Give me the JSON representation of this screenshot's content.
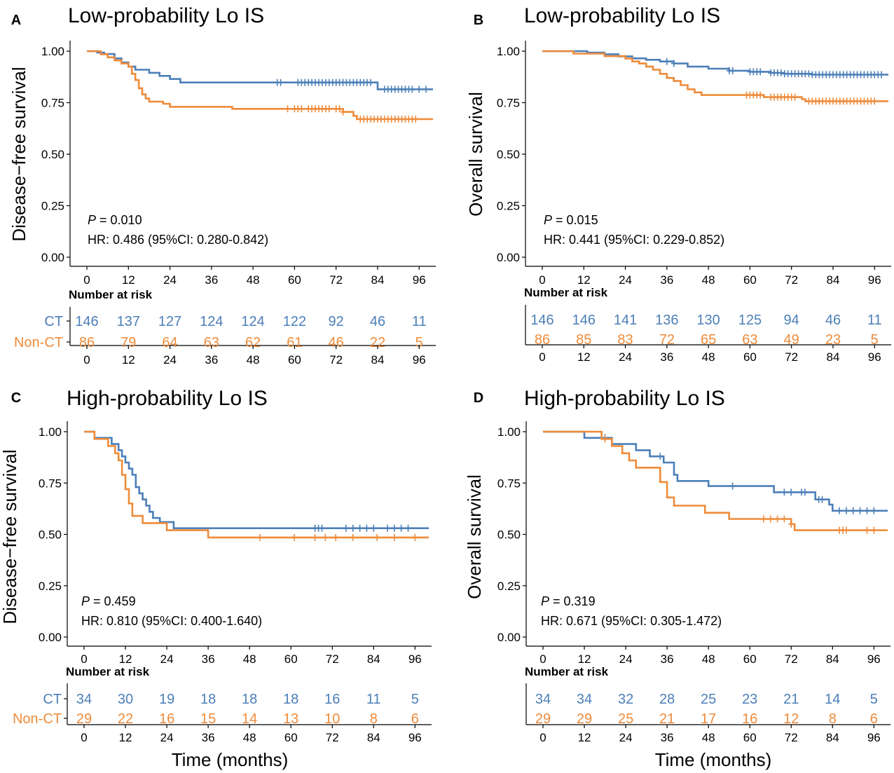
{
  "colors": {
    "ct": "#4C7FB8",
    "nonct": "#EE8B3A",
    "axis": "#000000"
  },
  "x_axis_label": "Time (months)",
  "risk_table_label": "Number at risk",
  "chart_data": [
    {
      "panel": "A",
      "title": "Low-probability Lo IS",
      "type": "line",
      "ylabel": "Disease−free survival",
      "xticks": [
        0,
        12,
        24,
        36,
        48,
        60,
        72,
        84,
        96
      ],
      "yticks": [
        "0.00",
        "0.25",
        "0.50",
        "0.75",
        "1.00"
      ],
      "xlim": [
        0,
        100
      ],
      "ylim": [
        0,
        1
      ],
      "p_label": "P",
      "p_value": "= 0.010",
      "hr_text": "HR: 0.486 (95%CI: 0.280-0.842)",
      "series": [
        {
          "name": "CT",
          "color": "#4C7FB8",
          "steps": [
            [
              0,
              1
            ],
            [
              3,
              0.993
            ],
            [
              5,
              0.986
            ],
            [
              8,
              0.965
            ],
            [
              10,
              0.945
            ],
            [
              12,
              0.925
            ],
            [
              14,
              0.91
            ],
            [
              18,
              0.895
            ],
            [
              21,
              0.88
            ],
            [
              24,
              0.865
            ],
            [
              27,
              0.848
            ],
            [
              54,
              0.848
            ],
            [
              84,
              0.815
            ],
            [
              100,
              0.815
            ]
          ],
          "censor": [
            55,
            56,
            61,
            62,
            63,
            64,
            65,
            66,
            67,
            68,
            69,
            70,
            71,
            72,
            73,
            74,
            75,
            76,
            77,
            78,
            79,
            80,
            81,
            82,
            86,
            87,
            88,
            89,
            90,
            91,
            92,
            93,
            94,
            96,
            98
          ]
        },
        {
          "name": "Non-CT",
          "color": "#EE8B3A",
          "steps": [
            [
              0,
              1
            ],
            [
              4,
              0.985
            ],
            [
              6,
              0.97
            ],
            [
              8,
              0.955
            ],
            [
              10,
              0.94
            ],
            [
              12,
              0.925
            ],
            [
              13,
              0.89
            ],
            [
              14,
              0.86
            ],
            [
              15,
              0.82
            ],
            [
              16,
              0.79
            ],
            [
              17,
              0.77
            ],
            [
              18,
              0.755
            ],
            [
              22,
              0.745
            ],
            [
              24,
              0.73
            ],
            [
              42,
              0.72
            ],
            [
              58,
              0.72
            ],
            [
              74,
              0.705
            ],
            [
              77,
              0.686
            ],
            [
              78,
              0.67
            ],
            [
              100,
              0.67
            ]
          ],
          "censor": [
            58,
            60,
            61,
            62,
            64,
            65,
            66,
            67,
            68,
            69,
            70,
            72,
            73,
            74,
            79,
            80,
            81,
            82,
            83,
            84,
            85,
            86,
            87,
            88,
            89,
            90,
            91,
            92,
            93,
            94,
            95
          ]
        }
      ],
      "risk": {
        "groups": [
          "CT",
          "Non-CT"
        ],
        "times": [
          0,
          12,
          24,
          36,
          48,
          60,
          72,
          84,
          96
        ],
        "rows": [
          [
            "146",
            "137",
            "127",
            "124",
            "124",
            "122",
            "92",
            "46",
            "11"
          ],
          [
            "86",
            "79",
            "64",
            "63",
            "62",
            "61",
            "46",
            "22",
            "5"
          ]
        ]
      }
    },
    {
      "panel": "B",
      "title": "Low-probability Lo IS",
      "type": "line",
      "ylabel": "Overall survival",
      "xticks": [
        0,
        12,
        24,
        36,
        48,
        60,
        72,
        84,
        96
      ],
      "yticks": [
        "0.00",
        "0.25",
        "0.50",
        "0.75",
        "1.00"
      ],
      "xlim": [
        0,
        100
      ],
      "ylim": [
        0,
        1
      ],
      "p_label": "P",
      "p_value": "= 0.015",
      "hr_text": "HR: 0.441 (95%CI: 0.229-0.852)",
      "series": [
        {
          "name": "CT",
          "color": "#4C7FB8",
          "steps": [
            [
              0,
              1
            ],
            [
              13,
              0.993
            ],
            [
              18,
              0.985
            ],
            [
              22,
              0.975
            ],
            [
              26,
              0.965
            ],
            [
              30,
              0.958
            ],
            [
              34,
              0.95
            ],
            [
              38,
              0.94
            ],
            [
              42,
              0.925
            ],
            [
              48,
              0.915
            ],
            [
              54,
              0.905
            ],
            [
              60,
              0.9
            ],
            [
              66,
              0.895
            ],
            [
              70,
              0.89
            ],
            [
              78,
              0.886
            ],
            [
              100,
              0.886
            ]
          ],
          "censor": [
            36,
            38,
            54,
            55,
            60,
            61,
            62,
            63,
            66,
            67,
            68,
            69,
            70,
            71,
            72,
            73,
            74,
            75,
            76,
            77,
            78,
            79,
            80,
            81,
            82,
            83,
            84,
            85,
            86,
            87,
            88,
            89,
            90,
            91,
            92,
            93,
            94,
            95,
            96,
            97,
            98
          ]
        },
        {
          "name": "Non-CT",
          "color": "#EE8B3A",
          "steps": [
            [
              0,
              1
            ],
            [
              9,
              0.988
            ],
            [
              18,
              0.976
            ],
            [
              24,
              0.964
            ],
            [
              26,
              0.95
            ],
            [
              28,
              0.94
            ],
            [
              30,
              0.925
            ],
            [
              32,
              0.91
            ],
            [
              34,
              0.89
            ],
            [
              36,
              0.87
            ],
            [
              38,
              0.855
            ],
            [
              40,
              0.835
            ],
            [
              42,
              0.815
            ],
            [
              44,
              0.8
            ],
            [
              46,
              0.787
            ],
            [
              58,
              0.787
            ],
            [
              64,
              0.777
            ],
            [
              75,
              0.767
            ],
            [
              76,
              0.757
            ],
            [
              100,
              0.757
            ]
          ],
          "censor": [
            59,
            60,
            61,
            62,
            63,
            66,
            67,
            68,
            69,
            70,
            71,
            72,
            73,
            77,
            78,
            79,
            80,
            81,
            82,
            83,
            84,
            85,
            86,
            87,
            88,
            89,
            90,
            91,
            92,
            93,
            94,
            95,
            96
          ]
        }
      ],
      "risk": {
        "groups": [
          "",
          ""
        ],
        "times": [
          0,
          12,
          24,
          36,
          48,
          60,
          72,
          84,
          96
        ],
        "rows": [
          [
            "146",
            "146",
            "141",
            "136",
            "130",
            "125",
            "94",
            "46",
            "11"
          ],
          [
            "86",
            "85",
            "83",
            "72",
            "65",
            "63",
            "49",
            "23",
            "5"
          ]
        ]
      }
    },
    {
      "panel": "C",
      "title": "High-probability Lo IS",
      "type": "line",
      "ylabel": "Disease−free survival",
      "xticks": [
        0,
        12,
        24,
        36,
        48,
        60,
        72,
        84,
        96
      ],
      "yticks": [
        "0.00",
        "0.25",
        "0.50",
        "0.75",
        "1.00"
      ],
      "xlim": [
        0,
        100
      ],
      "ylim": [
        0,
        1
      ],
      "p_label": "P",
      "p_value": "= 0.459",
      "hr_text": "HR: 0.810 (95%CI: 0.400-1.640)",
      "series": [
        {
          "name": "CT",
          "color": "#4C7FB8",
          "steps": [
            [
              0,
              1
            ],
            [
              3,
              0.97
            ],
            [
              8,
              0.94
            ],
            [
              10,
              0.91
            ],
            [
              11,
              0.88
            ],
            [
              12,
              0.85
            ],
            [
              13,
              0.82
            ],
            [
              14,
              0.79
            ],
            [
              15,
              0.73
            ],
            [
              16,
              0.7
            ],
            [
              17,
              0.67
            ],
            [
              18,
              0.64
            ],
            [
              19,
              0.61
            ],
            [
              20,
              0.58
            ],
            [
              22,
              0.56
            ],
            [
              26,
              0.53
            ],
            [
              100,
              0.53
            ]
          ],
          "censor": [
            67,
            68,
            69,
            76,
            78,
            80,
            82,
            84,
            88,
            90,
            92,
            94
          ]
        },
        {
          "name": "Non-CT",
          "color": "#EE8B3A",
          "steps": [
            [
              0,
              1
            ],
            [
              3,
              0.965
            ],
            [
              7,
              0.93
            ],
            [
              9,
              0.895
            ],
            [
              10,
              0.86
            ],
            [
              11,
              0.79
            ],
            [
              12,
              0.72
            ],
            [
              13,
              0.65
            ],
            [
              14,
              0.59
            ],
            [
              17,
              0.555
            ],
            [
              24,
              0.52
            ],
            [
              36,
              0.485
            ],
            [
              100,
              0.485
            ]
          ],
          "censor": [
            51,
            61,
            67,
            70,
            73,
            78,
            85,
            90,
            96
          ]
        }
      ],
      "risk": {
        "groups": [
          "CT",
          "Non-CT"
        ],
        "times": [
          0,
          12,
          24,
          36,
          48,
          60,
          72,
          84,
          96
        ],
        "rows": [
          [
            "34",
            "30",
            "19",
            "18",
            "18",
            "18",
            "16",
            "11",
            "5"
          ],
          [
            "29",
            "22",
            "16",
            "15",
            "14",
            "13",
            "10",
            "8",
            "6"
          ]
        ]
      }
    },
    {
      "panel": "D",
      "title": "High-probability Lo IS",
      "type": "line",
      "ylabel": "Overall survival",
      "xticks": [
        0,
        12,
        24,
        36,
        48,
        60,
        72,
        84,
        96
      ],
      "yticks": [
        "0.00",
        "0.25",
        "0.50",
        "0.75",
        "1.00"
      ],
      "xlim": [
        0,
        100
      ],
      "ylim": [
        0,
        1
      ],
      "p_label": "P",
      "p_value": "= 0.319",
      "hr_text": "HR: 0.671 (95%CI: 0.305-1.472)",
      "series": [
        {
          "name": "CT",
          "color": "#4C7FB8",
          "steps": [
            [
              0,
              1
            ],
            [
              12,
              0.97
            ],
            [
              20,
              0.94
            ],
            [
              27,
              0.91
            ],
            [
              31,
              0.88
            ],
            [
              35,
              0.85
            ],
            [
              38,
              0.79
            ],
            [
              39,
              0.76
            ],
            [
              48,
              0.735
            ],
            [
              67,
              0.705
            ],
            [
              79,
              0.67
            ],
            [
              83,
              0.645
            ],
            [
              84,
              0.615
            ],
            [
              100,
              0.615
            ]
          ],
          "censor": [
            18,
            34,
            55,
            70,
            72,
            75,
            76,
            80,
            81,
            86,
            88,
            90,
            92,
            94,
            96
          ]
        },
        {
          "name": "Non-CT",
          "color": "#EE8B3A",
          "steps": [
            [
              0,
              1
            ],
            [
              17,
              0.965
            ],
            [
              20,
              0.93
            ],
            [
              23,
              0.895
            ],
            [
              25,
              0.86
            ],
            [
              27,
              0.825
            ],
            [
              34,
              0.755
            ],
            [
              36,
              0.68
            ],
            [
              38,
              0.64
            ],
            [
              47,
              0.605
            ],
            [
              54,
              0.575
            ],
            [
              72,
              0.55
            ],
            [
              73,
              0.52
            ],
            [
              100,
              0.52
            ]
          ],
          "censor": [
            18,
            64,
            66,
            68,
            70,
            72,
            86,
            87,
            88,
            94,
            96
          ]
        }
      ],
      "risk": {
        "groups": [
          "",
          ""
        ],
        "times": [
          0,
          12,
          24,
          36,
          48,
          60,
          72,
          84,
          96
        ],
        "rows": [
          [
            "34",
            "34",
            "32",
            "28",
            "25",
            "23",
            "21",
            "14",
            "5"
          ],
          [
            "29",
            "29",
            "25",
            "21",
            "17",
            "16",
            "12",
            "8",
            "6"
          ]
        ]
      }
    }
  ]
}
